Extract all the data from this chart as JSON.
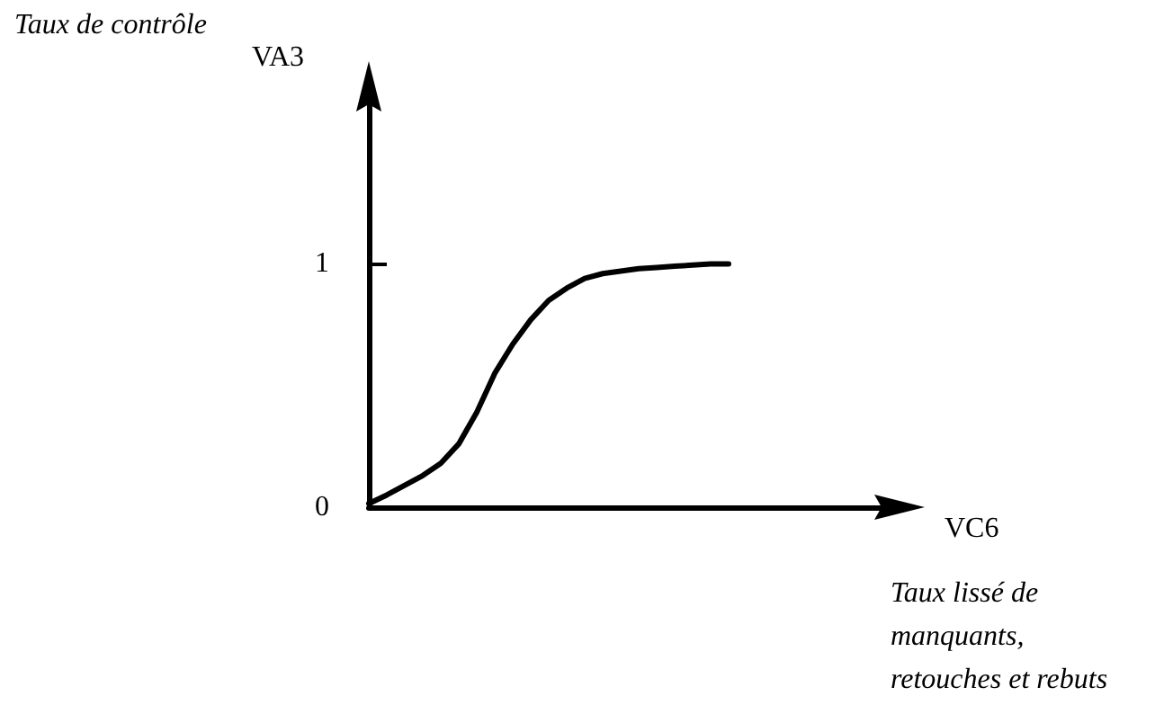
{
  "chart_data": {
    "type": "line",
    "xlabel": "VC6",
    "ylabel": "VA3",
    "annotations": [
      "Taux de contrôle",
      "Taux lissé de manquants, retouches et rebuts"
    ],
    "categories": [
      null,
      null,
      null,
      null,
      null,
      null,
      null,
      null,
      null,
      null,
      null,
      null,
      null,
      null,
      null,
      null,
      null,
      null,
      null,
      null,
      null,
      null,
      null,
      null,
      null,
      null,
      null,
      null,
      null,
      null
    ],
    "series": [
      {
        "color": "#000000",
        "values": [
          0.015,
          0.05,
          0.09,
          0.13,
          0.18,
          0.26,
          0.39,
          0.55,
          0.67,
          0.77,
          0.85,
          0.9,
          0.94,
          0.96,
          0.97,
          0.98,
          0.985,
          0.99,
          0.995,
          1,
          1,
          null,
          null,
          null,
          null,
          null,
          null,
          null,
          null,
          null
        ]
      }
    ],
    "ylim": [
      0,
      1.7
    ],
    "yticks": [
      {
        "value": 0,
        "label": "0"
      },
      1
    ],
    "grid": false,
    "marker": "none",
    "line_style": "solid"
  }
}
